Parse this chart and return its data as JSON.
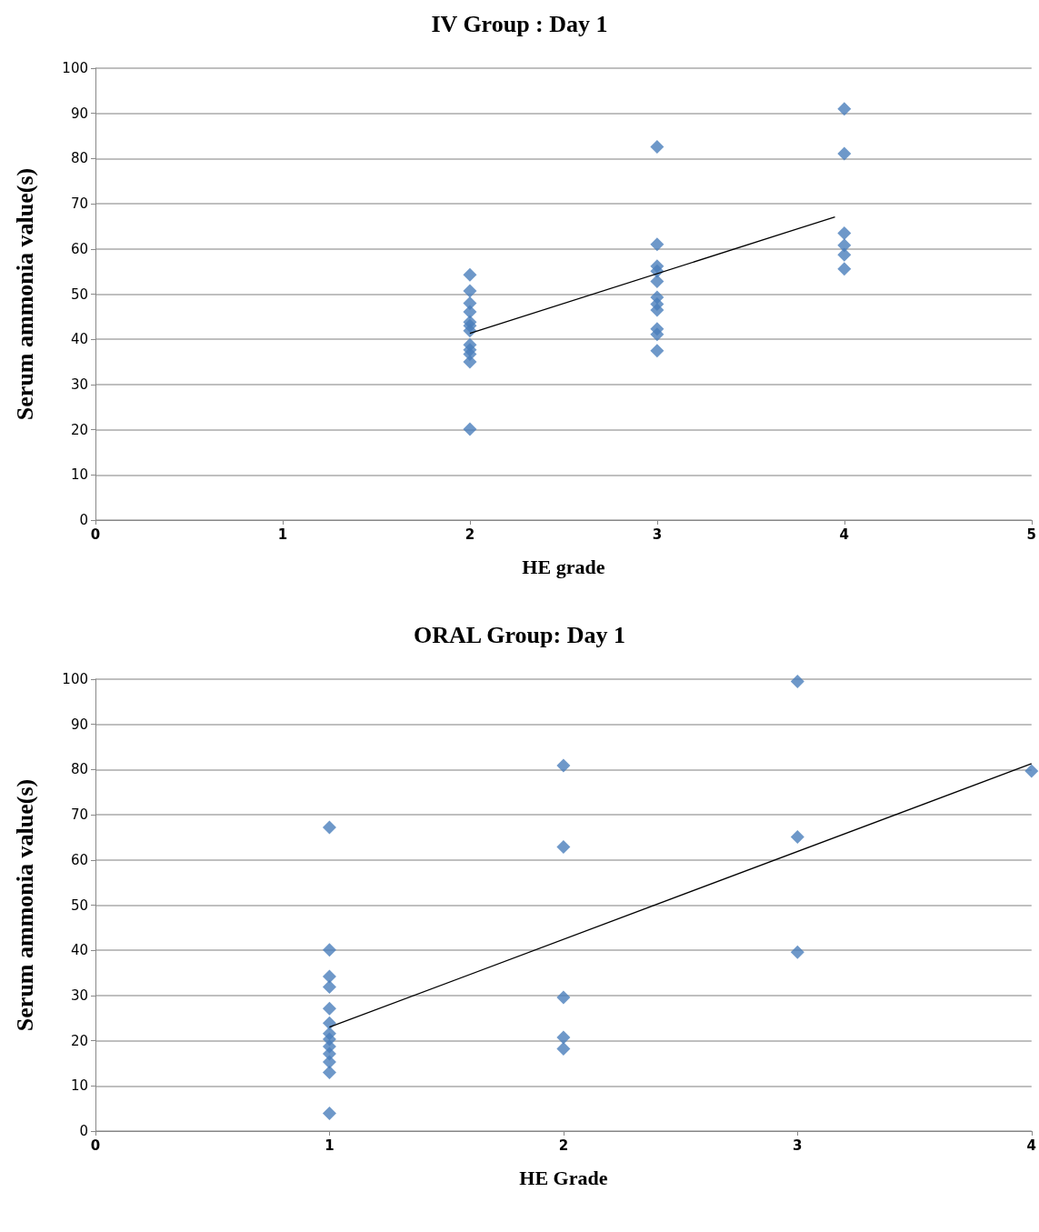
{
  "chart_data": [
    {
      "type": "scatter",
      "title": "IV Group : Day 1",
      "xlabel": "HE grade",
      "ylabel": "Serum ammonia value(s)",
      "xlim": [
        0,
        5
      ],
      "xticks": [
        0,
        1,
        2,
        3,
        4,
        5
      ],
      "ylim": [
        0,
        100
      ],
      "yticks": [
        0,
        10,
        20,
        30,
        40,
        50,
        60,
        70,
        80,
        90,
        100
      ],
      "grid": "y",
      "marker": "diamond",
      "series": [
        {
          "color": "#4a7ebb",
          "x": [
            2,
            2,
            2,
            2,
            2,
            2,
            2,
            2,
            2,
            2,
            2,
            2,
            3,
            3,
            3,
            3,
            3,
            3,
            3,
            3,
            3,
            3,
            3,
            4,
            4,
            4,
            4,
            4,
            4
          ],
          "values": [
            54.3,
            50.7,
            48,
            46.1,
            43.8,
            43,
            41.9,
            38.8,
            37.7,
            36.7,
            35,
            20.1,
            82.6,
            61,
            56.2,
            55.1,
            52.8,
            49.3,
            47.8,
            46.5,
            42.3,
            41.1,
            37.5,
            91,
            81.1,
            63.5,
            60.8,
            58.7,
            55.6
          ]
        },
        {
          "type": "line",
          "color": "#000000",
          "marker": "none",
          "x": [
            2,
            3.95
          ],
          "values": [
            41.3,
            67.1
          ]
        }
      ]
    },
    {
      "type": "scatter",
      "title": "ORAL Group: Day 1",
      "xlabel": "HE Grade",
      "ylabel": "Serum ammonia value(s)",
      "xlim": [
        0,
        4
      ],
      "xticks": [
        0,
        1,
        2,
        3,
        4
      ],
      "ylim": [
        0,
        100
      ],
      "yticks": [
        0,
        10,
        20,
        30,
        40,
        50,
        60,
        70,
        80,
        90,
        100
      ],
      "grid": "y",
      "marker": "diamond",
      "series": [
        {
          "color": "#4a7ebb",
          "x": [
            1,
            1,
            1,
            1,
            1,
            1,
            1,
            1,
            1,
            1,
            1,
            1,
            1,
            2,
            2,
            2,
            2,
            2,
            3,
            3,
            3,
            4
          ],
          "values": [
            67.2,
            40.1,
            34.2,
            31.9,
            27.1,
            23.9,
            21.6,
            20.3,
            18.7,
            17.1,
            15.3,
            13,
            3.9,
            80.9,
            62.9,
            29.6,
            20.7,
            18.2,
            99.5,
            65.1,
            39.6,
            79.7
          ]
        },
        {
          "type": "line",
          "color": "#000000",
          "marker": "none",
          "x": [
            1,
            4
          ],
          "values": [
            23,
            81.3
          ]
        }
      ]
    }
  ]
}
